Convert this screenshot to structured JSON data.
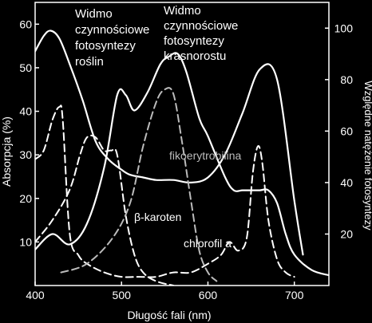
{
  "chart_data": {
    "type": "line",
    "xlabel": "Długość fali (nm)",
    "ylabel_left": "Absorpcja (%)",
    "ylabel_right": "Względne natężenie fotosyntezy",
    "xlim": [
      400,
      740
    ],
    "ylim_left": [
      0,
      65
    ],
    "ylim_right": [
      0,
      110
    ],
    "x_ticks": [
      400,
      500,
      600,
      700
    ],
    "y_ticks_left": [
      10,
      20,
      30,
      40,
      50,
      60
    ],
    "y_ticks_right": [
      20,
      40,
      60,
      80,
      100
    ],
    "grid": false,
    "annotations": [
      {
        "text": [
          "Widmo",
          "czynnościowe",
          "fotosyntezy",
          "roślin"
        ],
        "color": "#ffffff",
        "target": "action-plants"
      },
      {
        "text": [
          "Widmo",
          "czynnościowe",
          "fotosyntezy",
          "krasnorostu"
        ],
        "color": "#ffffff",
        "target": "action-red-algae"
      },
      {
        "text": [
          "fikoerytrobilina"
        ],
        "color": "#bbbbbb",
        "target": "phycoerythrobilin"
      },
      {
        "text": [
          "β-karoten"
        ],
        "color": "#ffffff",
        "target": "beta-carotene"
      },
      {
        "text": [
          "chlorofil a"
        ],
        "color": "#ffffff",
        "target": "chlorophyll-a"
      }
    ],
    "series": [
      {
        "key": "action-plants",
        "axis": "right",
        "style": "solid",
        "color": "#ffffff",
        "x": [
          400,
          410,
          418,
          428,
          440,
          455,
          470,
          485,
          500,
          510,
          525,
          540,
          560,
          580,
          600,
          620,
          640,
          660,
          680,
          700,
          710
        ],
        "y": [
          91,
          97,
          99,
          96,
          86,
          72,
          56,
          49,
          45,
          43,
          42,
          41,
          41,
          40,
          42,
          51,
          67,
          84,
          80,
          33,
          12
        ]
      },
      {
        "key": "action-red-algae",
        "axis": "right",
        "style": "solid",
        "color": "#ffffff",
        "x": [
          400,
          420,
          440,
          460,
          480,
          495,
          505,
          515,
          530,
          545,
          555,
          565,
          575,
          590,
          600,
          620,
          630,
          640,
          650,
          660,
          670,
          680,
          690,
          700,
          720,
          740
        ],
        "y": [
          14,
          20,
          16,
          24,
          46,
          74,
          74,
          68,
          75,
          86,
          89,
          90,
          83,
          65,
          58,
          42,
          37,
          37,
          37,
          37,
          37,
          32,
          20,
          12,
          6,
          4
        ]
      },
      {
        "key": "chlorophyll-a",
        "axis": "left",
        "style": "dashed",
        "color": "#ffffff",
        "x": [
          400,
          410,
          420,
          428,
          432,
          440,
          450,
          460,
          480,
          500,
          520,
          540,
          560,
          580,
          600,
          615,
          625,
          635,
          645,
          652,
          658,
          663,
          670,
          680,
          690,
          700
        ],
        "y": [
          29,
          31,
          38,
          41,
          38,
          12,
          7,
          5,
          3,
          2,
          2,
          2,
          3,
          3,
          5,
          7,
          10,
          8,
          11,
          26,
          32,
          28,
          15,
          6,
          3,
          2
        ]
      },
      {
        "key": "beta-carotene",
        "axis": "left",
        "style": "dashed",
        "color": "#ffffff",
        "x": [
          400,
          420,
          440,
          452,
          460,
          470,
          480,
          488,
          495,
          505,
          515,
          525,
          540,
          560
        ],
        "y": [
          10,
          15,
          22,
          30,
          34,
          34,
          31,
          31,
          30,
          16,
          7,
          3,
          1,
          0
        ]
      },
      {
        "key": "phycoerythrobilin",
        "axis": "left",
        "style": "dashed",
        "color": "#bbbbbb",
        "x": [
          430,
          460,
          490,
          510,
          525,
          540,
          550,
          560,
          570,
          580,
          590,
          600,
          610
        ],
        "y": [
          3,
          5,
          11,
          19,
          32,
          42,
          45,
          44,
          33,
          20,
          8,
          3,
          1
        ]
      }
    ]
  }
}
